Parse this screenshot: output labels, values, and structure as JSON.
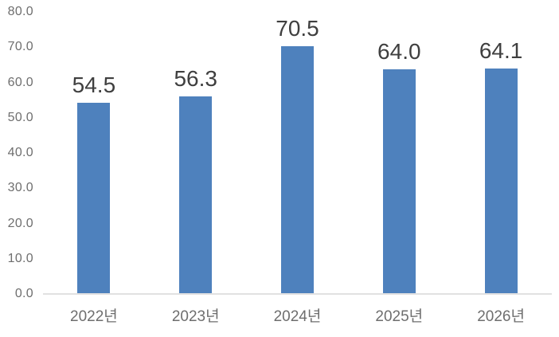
{
  "chart_data": {
    "type": "bar",
    "categories": [
      "2022년",
      "2023년",
      "2024년",
      "2025년",
      "2026년"
    ],
    "values": [
      54.5,
      56.3,
      70.5,
      64.0,
      64.1
    ],
    "value_labels": [
      "54.5",
      "56.3",
      "70.5",
      "64.0",
      "64.1"
    ],
    "y_ticks": [
      "0.0",
      "10.0",
      "20.0",
      "30.0",
      "40.0",
      "50.0",
      "60.0",
      "70.0",
      "80.0"
    ],
    "ylim": [
      0,
      80
    ],
    "xlabel": "",
    "ylabel": "",
    "grid": false,
    "legend": false,
    "colors": {
      "bar": "#4E81BD",
      "data_label": "#3F3F3F",
      "axis_tick_label": "#6E6E6E",
      "axis_line": "#E1E1E1",
      "background": "#FFFFFF"
    }
  }
}
